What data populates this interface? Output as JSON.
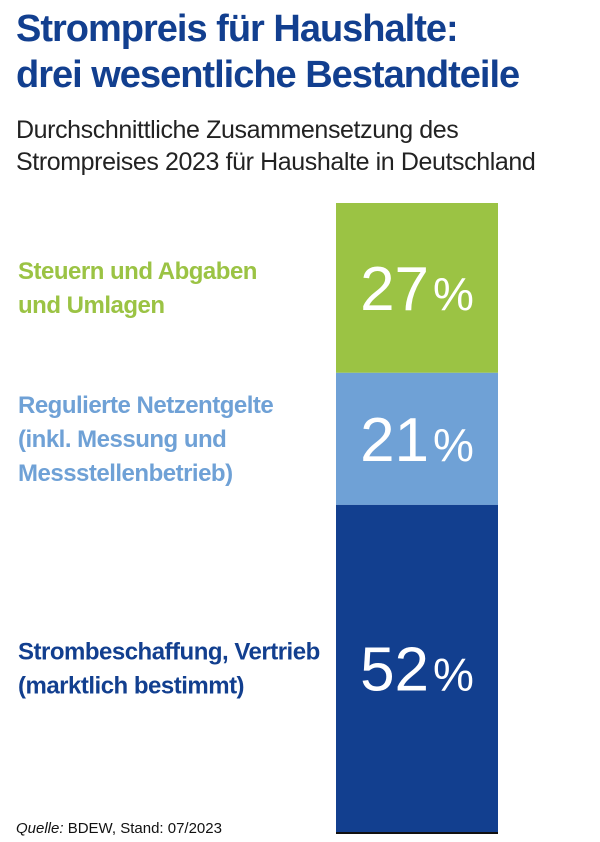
{
  "title_lines": [
    "Strompreis für Haushalte:",
    "drei wesentliche Bestandteile"
  ],
  "subtitle_lines": [
    "Durchschnittliche Zusammensetzung des",
    "Strompreises 2023 für Haushalte in Deutschland"
  ],
  "chart_data": {
    "type": "bar",
    "stacked": true,
    "orientation": "vertical",
    "unit": "%",
    "series": [
      {
        "name_lines": [
          "Steuern und Abgaben",
          "und Umlagen"
        ],
        "value": 27,
        "value_label": "27",
        "color": "#9bc344"
      },
      {
        "name_lines": [
          "Regulierte Netzentgelte",
          "(inkl. Messung und",
          "Messstellenbetrieb)"
        ],
        "value": 21,
        "value_label": "21",
        "color": "#6fa1d6"
      },
      {
        "name_lines": [
          "Strombeschaffung, Vertrieb",
          "(marktlich bestimmt)"
        ],
        "value": 52,
        "value_label": "52",
        "color": "#123f8f"
      }
    ],
    "total": 100
  },
  "source": {
    "label": "Quelle:",
    "text": " BDEW, Stand: 07/2023"
  }
}
